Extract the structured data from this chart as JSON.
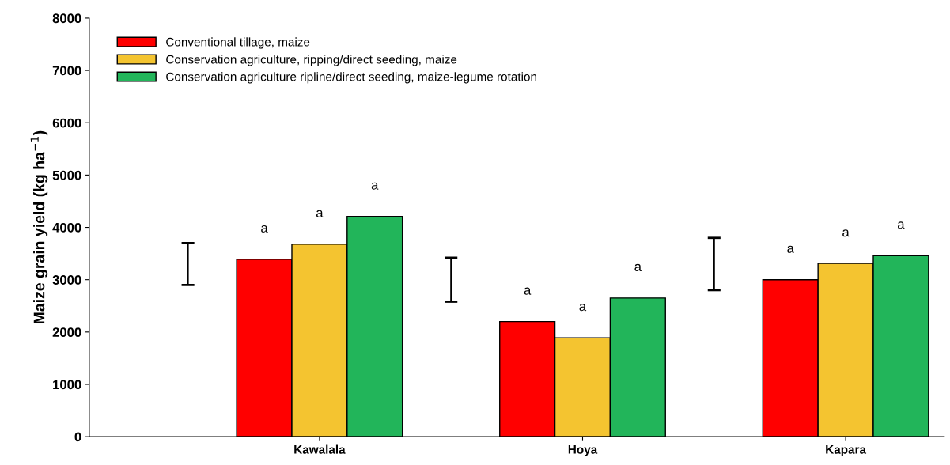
{
  "chart_data": {
    "type": "bar",
    "ylabel": "Maize grain yield (kg ha$^{−1}$)",
    "categories": [
      null,
      "Kawalala",
      null,
      "Hoya",
      null,
      "Kapara"
    ],
    "series": [
      {
        "name": "Conventional tillage, maize",
        "color": "#ff0000",
        "values": [
          null,
          3390,
          null,
          2200,
          null,
          3000
        ],
        "value_labels": [
          null,
          "a",
          null,
          "a",
          null,
          "a"
        ]
      },
      {
        "name": "Conservation agriculture, ripping/direct seeding, maize",
        "color": "#f4c430",
        "values": [
          null,
          3680,
          null,
          1890,
          null,
          3310
        ],
        "value_labels": [
          null,
          "a",
          null,
          "a",
          null,
          "a"
        ]
      },
      {
        "name": "Conservation agriculture ripline/direct seeding, maize-legume rotation",
        "color": "#22b55a",
        "values": [
          null,
          4210,
          null,
          2650,
          null,
          3460
        ],
        "value_labels": [
          null,
          "a",
          null,
          "a",
          null,
          "a"
        ]
      },
      {
        "type": "bar",
        "color": "#000000",
        "base": [
          2900,
          null,
          2580,
          null,
          2800,
          null
        ],
        "values": [
          800,
          null,
          840,
          null,
          1000,
          null
        ]
      }
    ],
    "ylim": [
      0,
      8000
    ],
    "yticks": [
      0,
      1000,
      2000,
      3000,
      4000,
      5000,
      6000,
      7000,
      8000
    ],
    "grid": false,
    "legend": "top left"
  }
}
